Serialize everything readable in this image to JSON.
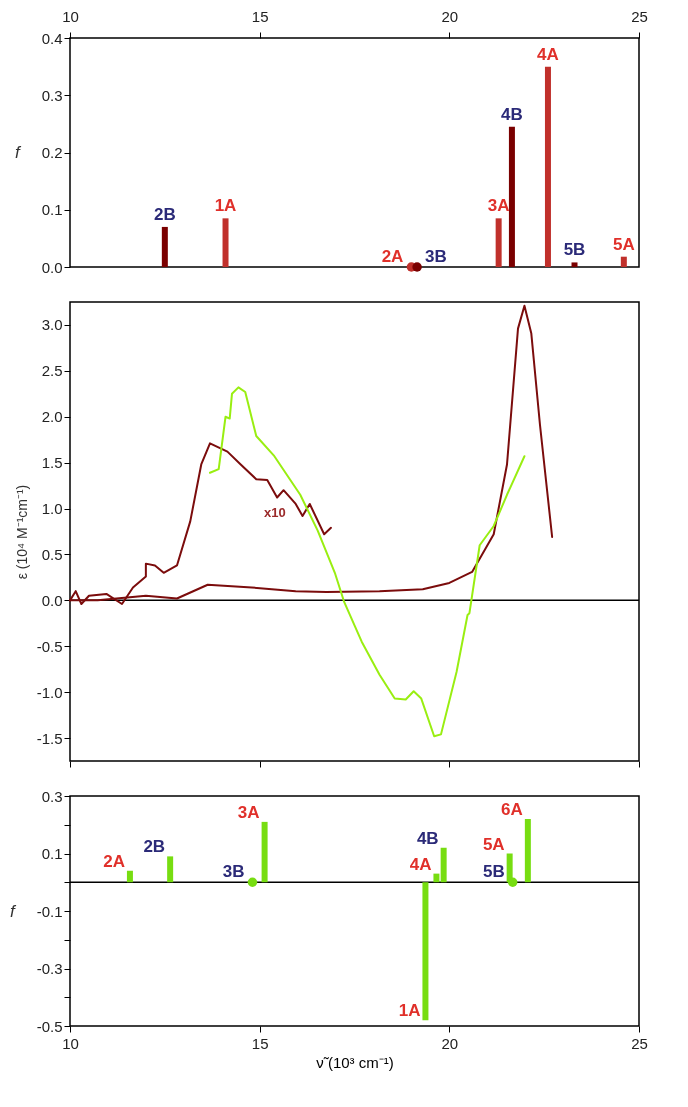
{
  "chart_data": [
    {
      "type": "bar",
      "ylabel": "f",
      "xlim": [
        10,
        25
      ],
      "xticks": [
        10,
        15,
        20,
        25
      ],
      "ylim": [
        0,
        0.4
      ],
      "yticks": [
        {
          "value": 0,
          "label": "0.0"
        },
        0.1,
        0.2,
        0.3,
        0.4
      ],
      "marker": "circle",
      "annotations": [
        {
          "text": "1A",
          "x": 14.1,
          "y": 0.085
        },
        {
          "text": "3A",
          "x": 21.3,
          "y": 0.085
        },
        {
          "text": "4A",
          "x": 22.6,
          "y": 0.35
        },
        {
          "text": "5A",
          "x": 24.6,
          "y": 0.018
        },
        {
          "text": "2B",
          "x": 12.5,
          "y": 0.07
        },
        {
          "text": "4B",
          "x": 21.65,
          "y": 0.245
        },
        {
          "text": "5B",
          "x": 23.3,
          "y": 0.008
        },
        {
          "text": "2A",
          "x": 19.0,
          "y": 0
        },
        {
          "text": "3B",
          "x": 19.15,
          "y": 0
        }
      ],
      "series": [
        {
          "color": "#c0302b",
          "x": [
            14.1,
            21.3,
            22.6,
            24.6
          ],
          "values": [
            0.085,
            0.085,
            0.35,
            0.018
          ]
        },
        {
          "color": "#7a0000",
          "x": [
            12.5,
            21.65,
            23.3
          ],
          "values": [
            0.07,
            0.245,
            0.008
          ]
        },
        {
          "type": "scatter",
          "color": "#c0302b",
          "x": [
            19.0
          ],
          "values": [
            0
          ]
        },
        {
          "type": "scatter",
          "color": "#7a0000",
          "x": [
            19.15
          ],
          "values": [
            0
          ]
        }
      ]
    },
    {
      "type": "line",
      "ylabel": "ε (10⁴ M⁻¹cm⁻¹)",
      "xlim": [
        10,
        25
      ],
      "xticks": [
        10,
        15,
        20,
        25
      ],
      "ylim": [
        -1.75,
        3.25
      ],
      "yticks": [
        {
          "value": 3,
          "label": "3.0"
        },
        2.5,
        {
          "value": 2,
          "label": "2.0"
        },
        1.5,
        {
          "value": 1,
          "label": "1.0"
        },
        0.5,
        {
          "value": 0,
          "label": "0.0"
        },
        -0.5,
        {
          "value": -1,
          "label": "-1.0"
        },
        -1.5
      ],
      "tick_labels": "y",
      "ref_lines": [
        {
          "axis": "y",
          "value": 0,
          "color": "#000000"
        }
      ],
      "annotations": [
        "x10"
      ],
      "series": [
        {
          "color": "#7b0c0c",
          "x": [
            10,
            10.15,
            10.3,
            10.5,
            10.96,
            11.37,
            11.66,
            12.0,
            12.0,
            12.24,
            12.47,
            12.82,
            13.17,
            13.46,
            13.69,
            14.15,
            14.5,
            14.91,
            15.2,
            15.46,
            15.63,
            15.95,
            16.13,
            16.32,
            16.7,
            16.88
          ],
          "values": [
            0,
            0.1,
            -0.04,
            0.05,
            0.07,
            -0.04,
            0.14,
            0.26,
            0.4,
            0.38,
            0.3,
            0.38,
            0.86,
            1.48,
            1.71,
            1.62,
            1.48,
            1.32,
            1.31,
            1.12,
            1.2,
            1.05,
            0.92,
            1.05,
            0.72,
            0.79
          ]
        },
        {
          "color": "#7b0c0c",
          "x": [
            10,
            10.73,
            12.0,
            12.82,
            13.63,
            14.79,
            15.95,
            16.76,
            18.16,
            19.3,
            20.0,
            20.6,
            21.17,
            21.52,
            21.81,
            21.98,
            22.16,
            22.39,
            22.71
          ],
          "values": [
            0,
            0,
            0.05,
            0.02,
            0.17,
            0.14,
            0.1,
            0.09,
            0.1,
            0.12,
            0.19,
            0.31,
            0.72,
            1.48,
            2.96,
            3.21,
            2.91,
            1.91,
            0.69
          ]
        },
        {
          "color": "#99ee11",
          "x": [
            13.69,
            13.92,
            14.1,
            14.21,
            14.27,
            14.44,
            14.62,
            14.91,
            15.37,
            16.07,
            16.53,
            16.99,
            17.23,
            17.69,
            18.16,
            18.56,
            18.85,
            19.06,
            19.26,
            19.6,
            19.78,
            20.19,
            20.48,
            20.53,
            20.8,
            21.17,
            21.52,
            21.98
          ],
          "values": [
            1.39,
            1.43,
            2.0,
            1.98,
            2.25,
            2.32,
            2.27,
            1.79,
            1.58,
            1.15,
            0.76,
            0.29,
            -0.02,
            -0.45,
            -0.81,
            -1.07,
            -1.08,
            -0.99,
            -1.07,
            -1.48,
            -1.46,
            -0.78,
            -0.16,
            -0.14,
            0.6,
            0.81,
            1.15,
            1.57
          ]
        }
      ]
    },
    {
      "type": "bar",
      "xlabel": "ν̃ (10³ cm⁻¹)",
      "ylabel": "f",
      "xlim": [
        10,
        25
      ],
      "xticks": [
        10,
        15,
        20,
        25
      ],
      "ylim": [
        -0.5,
        0.3
      ],
      "yticks": [
        0.3,
        {
          "value": 0.2,
          "label": null
        },
        0.1,
        {
          "value": 0,
          "label": null
        },
        -0.1,
        {
          "value": -0.2,
          "label": null
        },
        -0.3,
        {
          "value": -0.4,
          "label": null
        },
        -0.5
      ],
      "ref_lines": [
        {
          "axis": "y",
          "value": 0,
          "color": "#000000"
        }
      ],
      "marker": "circle",
      "annotations": [
        {
          "text": "2A",
          "x": 11.58,
          "y": 0.04
        },
        {
          "text": "3A",
          "x": 15.13,
          "y": 0.21
        },
        {
          "text": "1A",
          "x": 19.37,
          "y": -0.48
        },
        {
          "text": "4A",
          "x": 19.66,
          "y": 0.03
        },
        {
          "text": "5A",
          "x": 21.59,
          "y": 0.1
        },
        {
          "text": "6A",
          "x": 22.07,
          "y": 0.22
        },
        {
          "text": "2B",
          "x": 12.64,
          "y": 0.09
        },
        {
          "text": "4B",
          "x": 19.85,
          "y": 0.12
        },
        {
          "text": "3B",
          "x": 14.81,
          "y": 0
        },
        {
          "text": "5B",
          "x": 21.67,
          "y": 0
        }
      ],
      "series": [
        {
          "color": "#77dd11",
          "x": [
            11.58,
            15.13,
            19.37,
            19.66,
            21.59,
            22.07
          ],
          "values": [
            0.04,
            0.21,
            -0.48,
            0.03,
            0.1,
            0.22
          ]
        },
        {
          "color": "#77dd11",
          "x": [
            12.64,
            19.85
          ],
          "values": [
            0.09,
            0.12
          ]
        },
        {
          "type": "scatter",
          "color": "#77dd11",
          "x": [
            14.81,
            21.67
          ],
          "values": [
            0,
            0
          ]
        }
      ]
    }
  ]
}
